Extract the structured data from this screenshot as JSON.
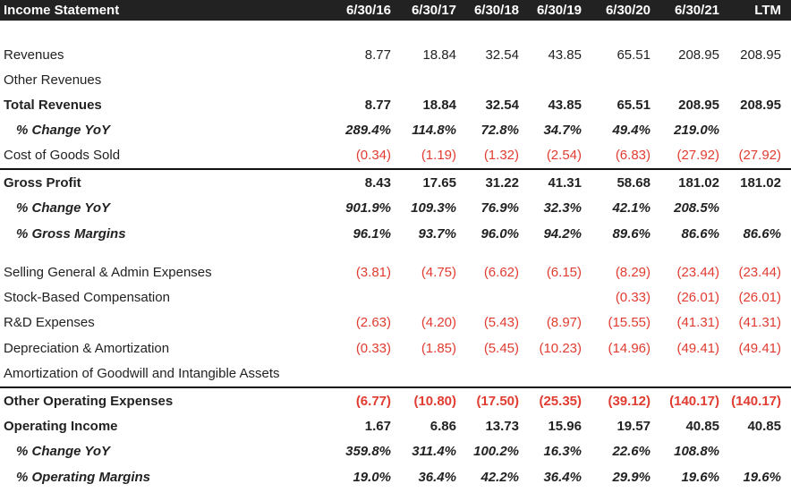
{
  "header": {
    "title": "Income Statement",
    "columns": [
      "6/30/16",
      "6/30/17",
      "6/30/18",
      "6/30/19",
      "6/30/20",
      "6/30/21",
      "LTM"
    ]
  },
  "rows": [
    {
      "label": "Revenues",
      "style": "normal",
      "values": [
        "8.77",
        "18.84",
        "32.54",
        "43.85",
        "65.51",
        "208.95",
        "208.95"
      ]
    },
    {
      "label": "Other Revenues",
      "style": "normal",
      "values": [
        "",
        "",
        "",
        "",
        "",
        "",
        ""
      ]
    },
    {
      "label": "Total Revenues",
      "style": "bold",
      "values": [
        "8.77",
        "18.84",
        "32.54",
        "43.85",
        "65.51",
        "208.95",
        "208.95"
      ]
    },
    {
      "label": "% Change YoY",
      "style": "ital",
      "values": [
        "289.4%",
        "114.8%",
        "72.8%",
        "34.7%",
        "49.4%",
        "219.0%",
        ""
      ]
    },
    {
      "label": "Cost of Goods Sold",
      "style": "normal",
      "values": [
        "(0.34)",
        "(1.19)",
        "(1.32)",
        "(2.54)",
        "(6.83)",
        "(27.92)",
        "(27.92)"
      ]
    },
    {
      "label": "Gross Profit",
      "style": "bold",
      "values": [
        "8.43",
        "17.65",
        "31.22",
        "41.31",
        "58.68",
        "181.02",
        "181.02"
      ]
    },
    {
      "label": "% Change YoY",
      "style": "ital",
      "values": [
        "901.9%",
        "109.3%",
        "76.9%",
        "32.3%",
        "42.1%",
        "208.5%",
        ""
      ]
    },
    {
      "label": "% Gross Margins",
      "style": "ital",
      "values": [
        "96.1%",
        "93.7%",
        "96.0%",
        "94.2%",
        "89.6%",
        "86.6%",
        "86.6%"
      ]
    },
    {
      "label": "Selling General & Admin Expenses",
      "style": "normal",
      "values": [
        "(3.81)",
        "(4.75)",
        "(6.62)",
        "(6.15)",
        "(8.29)",
        "(23.44)",
        "(23.44)"
      ]
    },
    {
      "label": "Stock-Based Compensation",
      "style": "normal",
      "values": [
        "",
        "",
        "",
        "",
        "(0.33)",
        "(26.01)",
        "(26.01)"
      ]
    },
    {
      "label": "R&D Expenses",
      "style": "normal",
      "values": [
        "(2.63)",
        "(4.20)",
        "(5.43)",
        "(8.97)",
        "(15.55)",
        "(41.31)",
        "(41.31)"
      ]
    },
    {
      "label": "Depreciation & Amortization",
      "style": "normal",
      "values": [
        "(0.33)",
        "(1.85)",
        "(5.45)",
        "(10.23)",
        "(14.96)",
        "(49.41)",
        "(49.41)"
      ]
    },
    {
      "label": "Amortization of Goodwill and Intangible Assets",
      "style": "normal",
      "values": [
        "",
        "",
        "",
        "",
        "",
        "",
        ""
      ]
    },
    {
      "label": "Other Operating Expenses",
      "style": "bold",
      "values": [
        "(6.77)",
        "(10.80)",
        "(17.50)",
        "(25.35)",
        "(39.12)",
        "(140.17)",
        "(140.17)"
      ]
    },
    {
      "label": "Operating Income",
      "style": "bold",
      "values": [
        "1.67",
        "6.86",
        "13.73",
        "15.96",
        "19.57",
        "40.85",
        "40.85"
      ]
    },
    {
      "label": "% Change YoY",
      "style": "ital",
      "values": [
        "359.8%",
        "311.4%",
        "100.2%",
        "16.3%",
        "22.6%",
        "108.8%",
        ""
      ]
    },
    {
      "label": "% Operating Margins",
      "style": "ital",
      "values": [
        "19.0%",
        "36.4%",
        "42.2%",
        "36.4%",
        "29.9%",
        "19.6%",
        "19.6%"
      ]
    }
  ],
  "colors": {
    "negative": "#e03c31",
    "header_bg": "#222222"
  }
}
